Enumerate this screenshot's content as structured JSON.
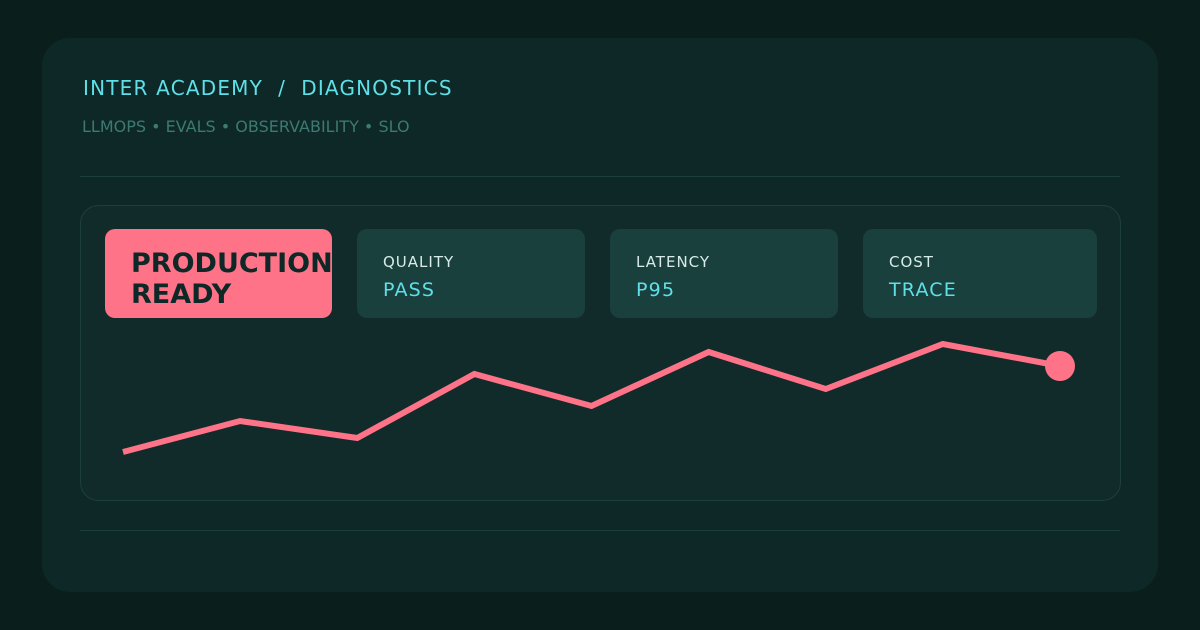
{
  "header": {
    "title": "INTER ACADEMY  /  DIAGNOSTICS",
    "subtitle": "LLMOPS • EVALS • OBSERVABILITY • SLO"
  },
  "badge": {
    "lines": [
      "PRODUCTION",
      "READY"
    ]
  },
  "metrics": [
    {
      "label": "QUALITY",
      "value": "PASS"
    },
    {
      "label": "LATENCY",
      "value": "P95"
    },
    {
      "label": "COST",
      "value": "TRACE"
    }
  ],
  "sparkline": {
    "values": [
      48,
      79,
      62,
      126,
      94,
      148,
      111,
      156,
      134
    ],
    "color": "#ff7388"
  }
}
